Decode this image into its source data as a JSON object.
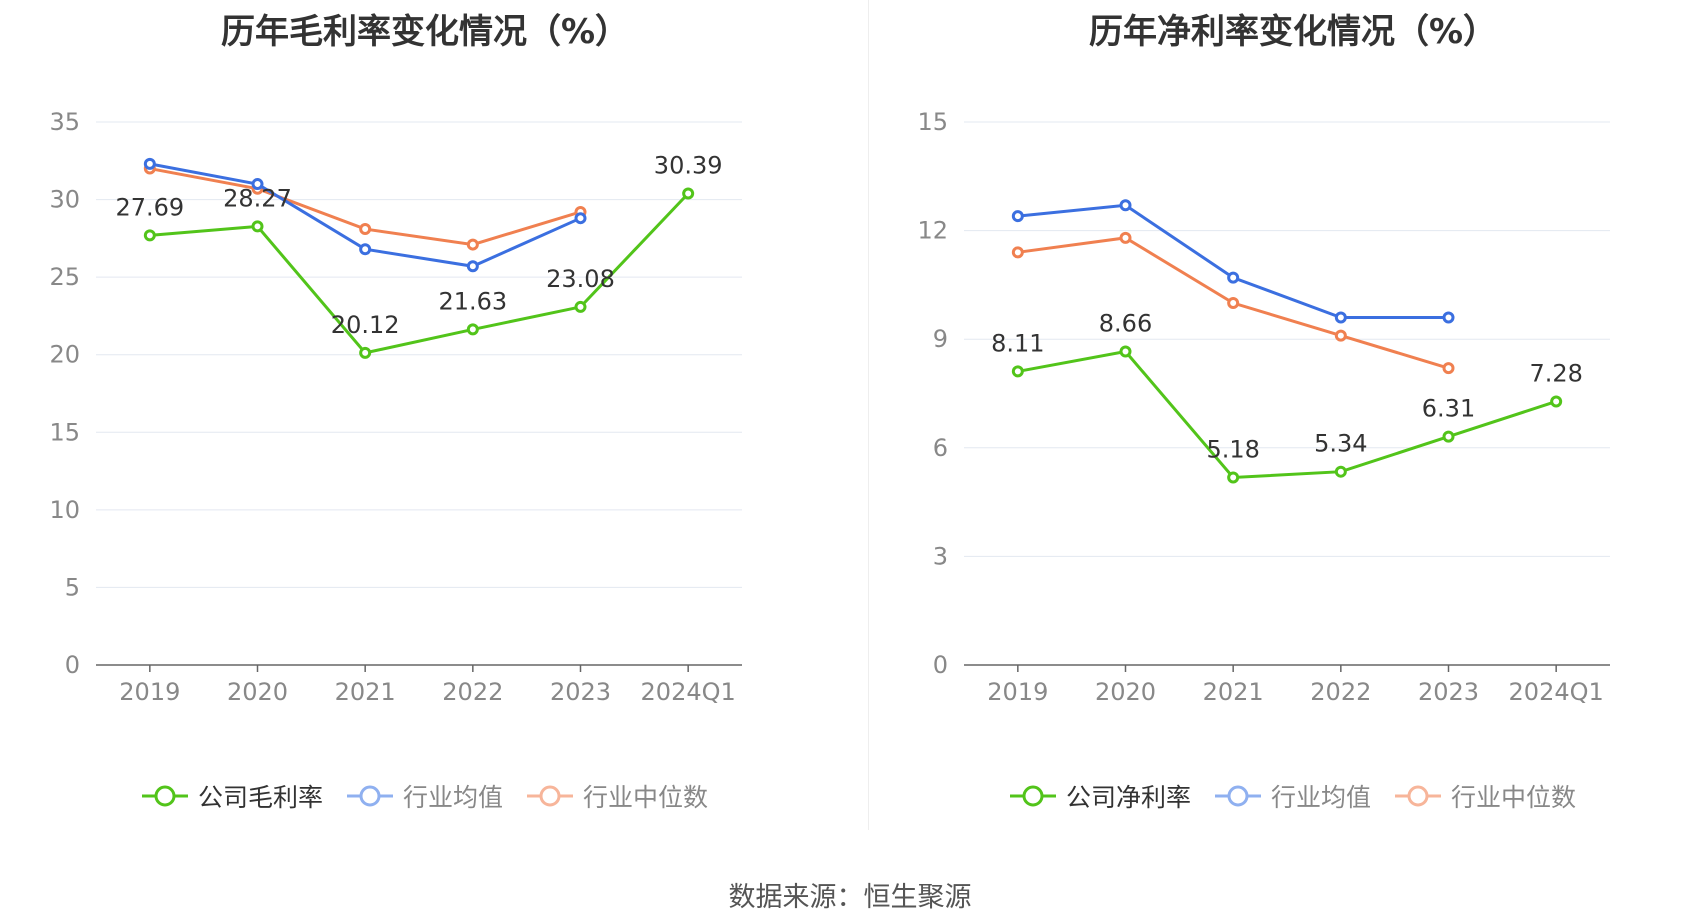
{
  "source_text": "数据来源：恒生聚源",
  "colors": {
    "company": "#52c41a",
    "avg": "#3b6fe0",
    "median": "#f08050"
  },
  "chart_data": [
    {
      "type": "line",
      "title": "历年毛利率变化情况（%）",
      "categories": [
        "2019",
        "2020",
        "2021",
        "2022",
        "2023",
        "2024Q1"
      ],
      "ylim": [
        0,
        35
      ],
      "yticks": [
        0,
        5,
        10,
        15,
        20,
        25,
        30,
        35
      ],
      "grid": true,
      "legend_position": "bottom",
      "series": [
        {
          "name": "公司毛利率",
          "values": [
            27.69,
            28.27,
            20.12,
            21.63,
            23.08,
            30.39
          ],
          "labels": [
            "27.69",
            "28.27",
            "20.12",
            "21.63",
            "23.08",
            "30.39"
          ]
        },
        {
          "name": "行业均值",
          "values": [
            32.3,
            31.0,
            26.8,
            25.7,
            28.8,
            null
          ]
        },
        {
          "name": "行业中位数",
          "values": [
            32.0,
            30.7,
            28.1,
            27.1,
            29.2,
            null
          ]
        }
      ]
    },
    {
      "type": "line",
      "title": "历年净利率变化情况（%）",
      "categories": [
        "2019",
        "2020",
        "2021",
        "2022",
        "2023",
        "2024Q1"
      ],
      "ylim": [
        0,
        15
      ],
      "yticks": [
        0,
        3,
        6,
        9,
        12,
        15
      ],
      "grid": true,
      "legend_position": "bottom",
      "series": [
        {
          "name": "公司净利率",
          "values": [
            8.11,
            8.66,
            5.18,
            5.34,
            6.31,
            7.28
          ],
          "labels": [
            "8.11",
            "8.66",
            "5.18",
            "5.34",
            "6.31",
            "7.28"
          ]
        },
        {
          "name": "行业均值",
          "values": [
            12.4,
            12.7,
            10.7,
            9.6,
            9.6,
            null
          ]
        },
        {
          "name": "行业中位数",
          "values": [
            11.4,
            11.8,
            10.0,
            9.1,
            8.2,
            null
          ]
        }
      ]
    }
  ]
}
